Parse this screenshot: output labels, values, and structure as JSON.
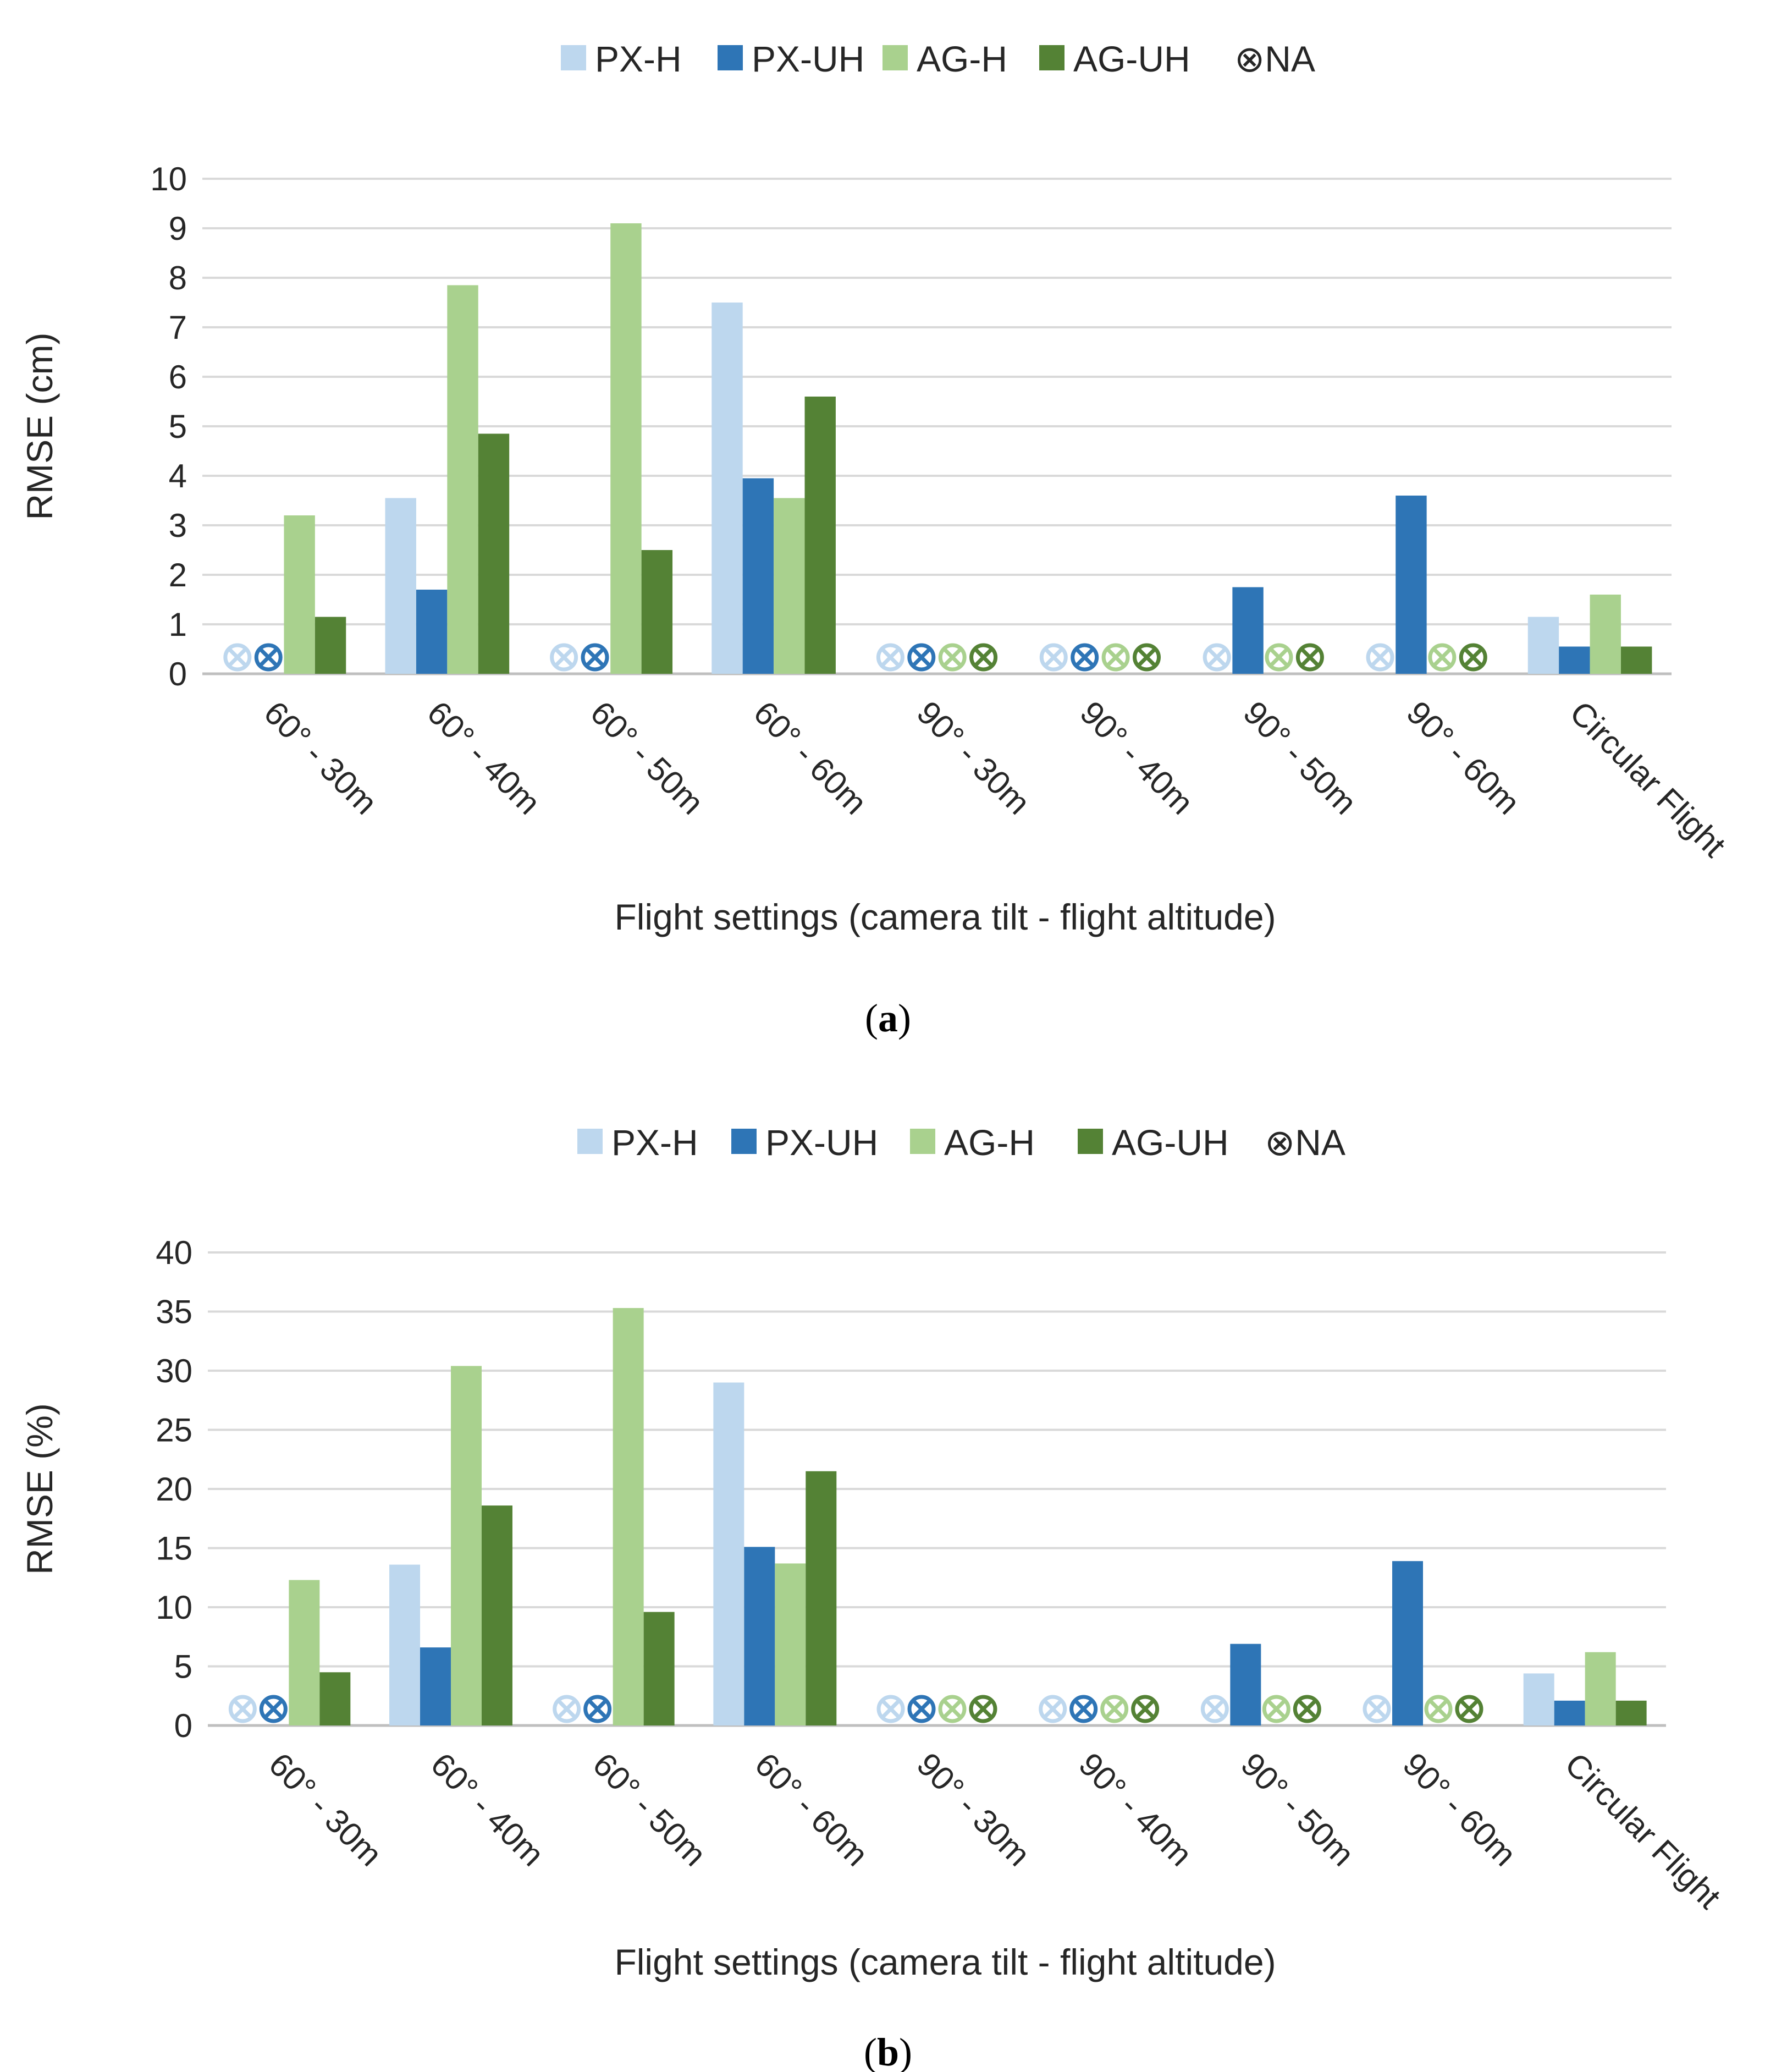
{
  "colors": {
    "PX-H": "#bdd7ee",
    "PX-UH": "#2e75b6",
    "AG-H": "#a9d18e",
    "AG-UH": "#548235",
    "NA": "#262626"
  },
  "chart_data": [
    {
      "type": "bar",
      "panel_label": "a",
      "title": "",
      "xlabel": "Flight settings (camera tilt - flight altitude)",
      "ylabel": "RMSE (cm)",
      "ylim": [
        0,
        10
      ],
      "yticks": [
        "0",
        "1",
        "2",
        "3",
        "4",
        "5",
        "6",
        "7",
        "8",
        "9",
        "10"
      ],
      "legend": [
        "PX-H",
        "PX-UH",
        "AG-H",
        "AG-UH",
        "NA"
      ],
      "legend_na_symbol": "⊗",
      "categories": [
        "60° - 30m",
        "60° - 40m",
        "60° - 50m",
        "60° - 60m",
        "90° - 30m",
        "90° - 40m",
        "90° - 50m",
        "90° - 60m",
        "Circular Flight"
      ],
      "series": [
        {
          "name": "PX-H",
          "values": [
            null,
            3.55,
            null,
            7.5,
            null,
            null,
            null,
            null,
            1.15
          ]
        },
        {
          "name": "PX-UH",
          "values": [
            null,
            1.7,
            null,
            3.95,
            null,
            null,
            1.75,
            3.6,
            0.55
          ]
        },
        {
          "name": "AG-H",
          "values": [
            3.2,
            7.85,
            9.1,
            3.55,
            null,
            null,
            null,
            null,
            1.6
          ]
        },
        {
          "name": "AG-UH",
          "values": [
            1.15,
            4.85,
            2.5,
            5.6,
            null,
            null,
            null,
            null,
            0.55
          ]
        }
      ]
    },
    {
      "type": "bar",
      "panel_label": "b",
      "title": "",
      "xlabel": "Flight settings (camera tilt - flight altitude)",
      "ylabel": "RMSE (%)",
      "ylim": [
        0,
        40
      ],
      "yticks": [
        "0",
        "5",
        "10",
        "15",
        "20",
        "25",
        "30",
        "35",
        "40"
      ],
      "legend": [
        "PX-H",
        "PX-UH",
        "AG-H",
        "AG-UH",
        "NA"
      ],
      "legend_na_symbol": "⊗",
      "categories": [
        "60° - 30m",
        "60° - 40m",
        "60° - 50m",
        "60° - 60m",
        "90° - 30m",
        "90° - 40m",
        "90° - 50m",
        "90° - 60m",
        "Circular Flight"
      ],
      "series": [
        {
          "name": "PX-H",
          "values": [
            null,
            13.6,
            null,
            29.0,
            null,
            null,
            null,
            null,
            4.4
          ]
        },
        {
          "name": "PX-UH",
          "values": [
            null,
            6.6,
            null,
            15.1,
            null,
            null,
            6.9,
            13.9,
            2.1
          ]
        },
        {
          "name": "AG-H",
          "values": [
            12.3,
            30.4,
            35.3,
            13.7,
            null,
            null,
            null,
            null,
            6.2
          ]
        },
        {
          "name": "AG-UH",
          "values": [
            4.5,
            18.6,
            9.6,
            21.5,
            null,
            null,
            null,
            null,
            2.1
          ]
        }
      ]
    }
  ]
}
